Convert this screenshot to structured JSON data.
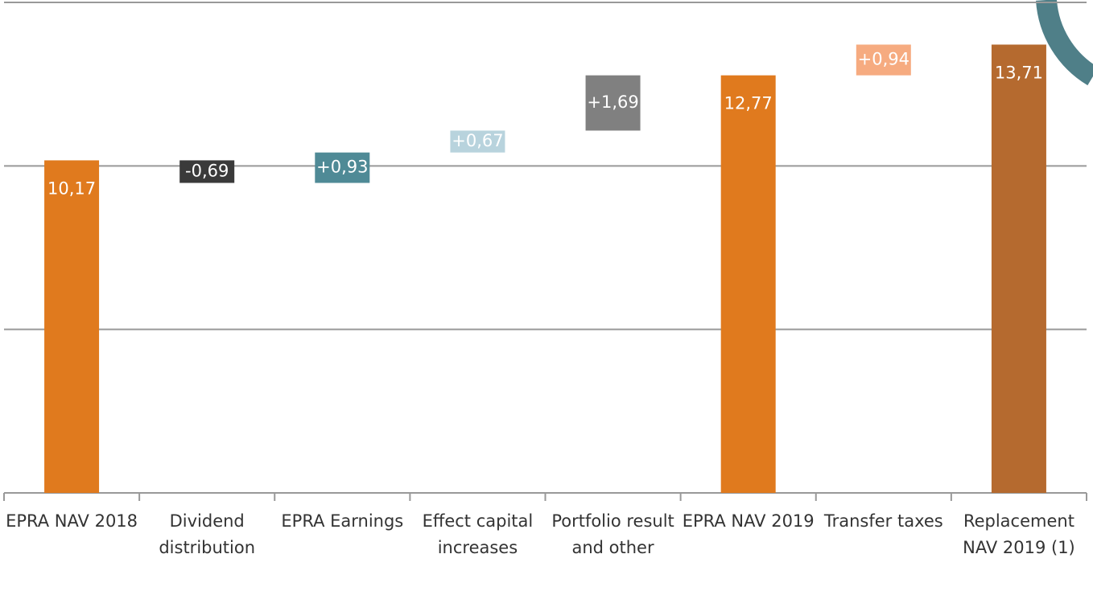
{
  "chart_data": {
    "type": "waterfall",
    "categories": [
      "EPRA NAV 2018",
      "Dividend distribution",
      "EPRA Earnings",
      "Effect capital increases",
      "Portfolio result and other",
      "EPRA NAV 2019",
      "Transfer taxes",
      "Replacement NAV 2019 (1)"
    ],
    "values": [
      10.17,
      -0.69,
      0.93,
      0.67,
      1.69,
      12.77,
      0.94,
      13.71
    ],
    "value_labels": [
      "10,17",
      "-0,69",
      "+0,93",
      "+0,67",
      "+1,69",
      "12,77",
      "+0,94",
      "13,71"
    ],
    "totals": [
      true,
      false,
      false,
      false,
      false,
      true,
      false,
      true
    ],
    "colors": [
      "#e07a1e",
      "#3a3a3a",
      "#4f8a96",
      "#b8d3dd",
      "#808080",
      "#e07a1e",
      "#f6ab80",
      "#b56a2f"
    ],
    "ylim": [
      0,
      15
    ],
    "yticks": [
      0,
      5,
      10,
      15
    ],
    "grid": true
  }
}
